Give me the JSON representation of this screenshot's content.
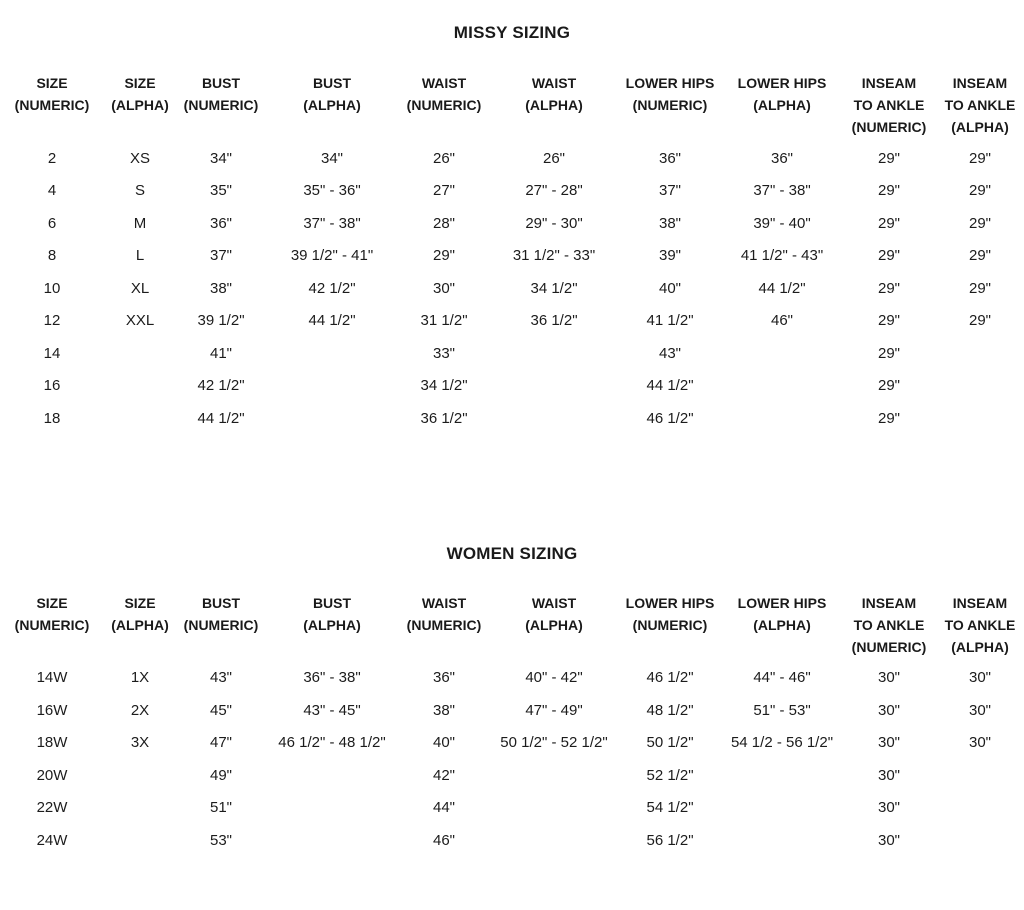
{
  "columns": [
    {
      "key": "size_numeric",
      "lines": [
        "SIZE",
        "(NUMERIC)"
      ]
    },
    {
      "key": "size_alpha",
      "lines": [
        "SIZE",
        "(ALPHA)"
      ]
    },
    {
      "key": "bust_numeric",
      "lines": [
        "BUST",
        "(NUMERIC)"
      ]
    },
    {
      "key": "bust_alpha",
      "lines": [
        "BUST",
        "(ALPHA)"
      ]
    },
    {
      "key": "waist_numeric",
      "lines": [
        "WAIST",
        "(NUMERIC)"
      ]
    },
    {
      "key": "waist_alpha",
      "lines": [
        "WAIST",
        "(ALPHA)"
      ]
    },
    {
      "key": "lower_hips_numeric",
      "lines": [
        "LOWER HIPS",
        "(NUMERIC)"
      ]
    },
    {
      "key": "lower_hips_alpha",
      "lines": [
        "LOWER HIPS",
        "(ALPHA)"
      ]
    },
    {
      "key": "inseam_numeric",
      "lines": [
        "INSEAM",
        "TO ANKLE",
        "(NUMERIC)"
      ]
    },
    {
      "key": "inseam_alpha",
      "lines": [
        "INSEAM",
        "TO ANKLE",
        "(ALPHA)"
      ]
    }
  ],
  "sections": [
    {
      "id": "missy",
      "title": "MISSY SIZING",
      "rows": [
        [
          "2",
          "XS",
          "34\"",
          "34\"",
          "26\"",
          "26\"",
          "36\"",
          "36\"",
          "29\"",
          "29\""
        ],
        [
          "4",
          "S",
          "35\"",
          "35\" - 36\"",
          "27\"",
          "27\" - 28\"",
          "37\"",
          "37\" - 38\"",
          "29\"",
          "29\""
        ],
        [
          "6",
          "M",
          "36\"",
          "37\" - 38\"",
          "28\"",
          "29\" - 30\"",
          "38\"",
          "39\" - 40\"",
          "29\"",
          "29\""
        ],
        [
          "8",
          "L",
          "37\"",
          "39 1/2\" - 41\"",
          "29\"",
          "31 1/2\" - 33\"",
          "39\"",
          "41 1/2\" - 43\"",
          "29\"",
          "29\""
        ],
        [
          "10",
          "XL",
          "38\"",
          "42 1/2\"",
          "30\"",
          "34 1/2\"",
          "40\"",
          "44 1/2\"",
          "29\"",
          "29\""
        ],
        [
          "12",
          "XXL",
          "39 1/2\"",
          "44 1/2\"",
          "31 1/2\"",
          "36 1/2\"",
          "41 1/2\"",
          "46\"",
          "29\"",
          "29\""
        ],
        [
          "14",
          "",
          "41\"",
          "",
          "33\"",
          "",
          "43\"",
          "",
          "29\"",
          ""
        ],
        [
          "16",
          "",
          "42 1/2\"",
          "",
          "34 1/2\"",
          "",
          "44 1/2\"",
          "",
          "29\"",
          ""
        ],
        [
          "18",
          "",
          "44 1/2\"",
          "",
          "36 1/2\"",
          "",
          "46 1/2\"",
          "",
          "29\"",
          ""
        ]
      ]
    },
    {
      "id": "women",
      "title": "WOMEN SIZING",
      "rows": [
        [
          "14W",
          "1X",
          "43\"",
          "36\" - 38\"",
          "36\"",
          "40\" - 42\"",
          "46 1/2\"",
          "44\" - 46\"",
          "30\"",
          "30\""
        ],
        [
          "16W",
          "2X",
          "45\"",
          "43\" - 45\"",
          "38\"",
          "47\" - 49\"",
          "48 1/2\"",
          "51\" - 53\"",
          "30\"",
          "30\""
        ],
        [
          "18W",
          "3X",
          "47\"",
          "46 1/2\" - 48 1/2\"",
          "40\"",
          "50 1/2\" - 52 1/2\"",
          "50 1/2\"",
          "54 1/2 - 56 1/2\"",
          "30\"",
          "30\""
        ],
        [
          "20W",
          "",
          "49\"",
          "",
          "42\"",
          "",
          "52 1/2\"",
          "",
          "30\"",
          ""
        ],
        [
          "22W",
          "",
          "51\"",
          "",
          "44\"",
          "",
          "54 1/2\"",
          "",
          "30\"",
          ""
        ],
        [
          "24W",
          "",
          "53\"",
          "",
          "46\"",
          "",
          "56 1/2\"",
          "",
          "30\"",
          ""
        ]
      ]
    }
  ]
}
